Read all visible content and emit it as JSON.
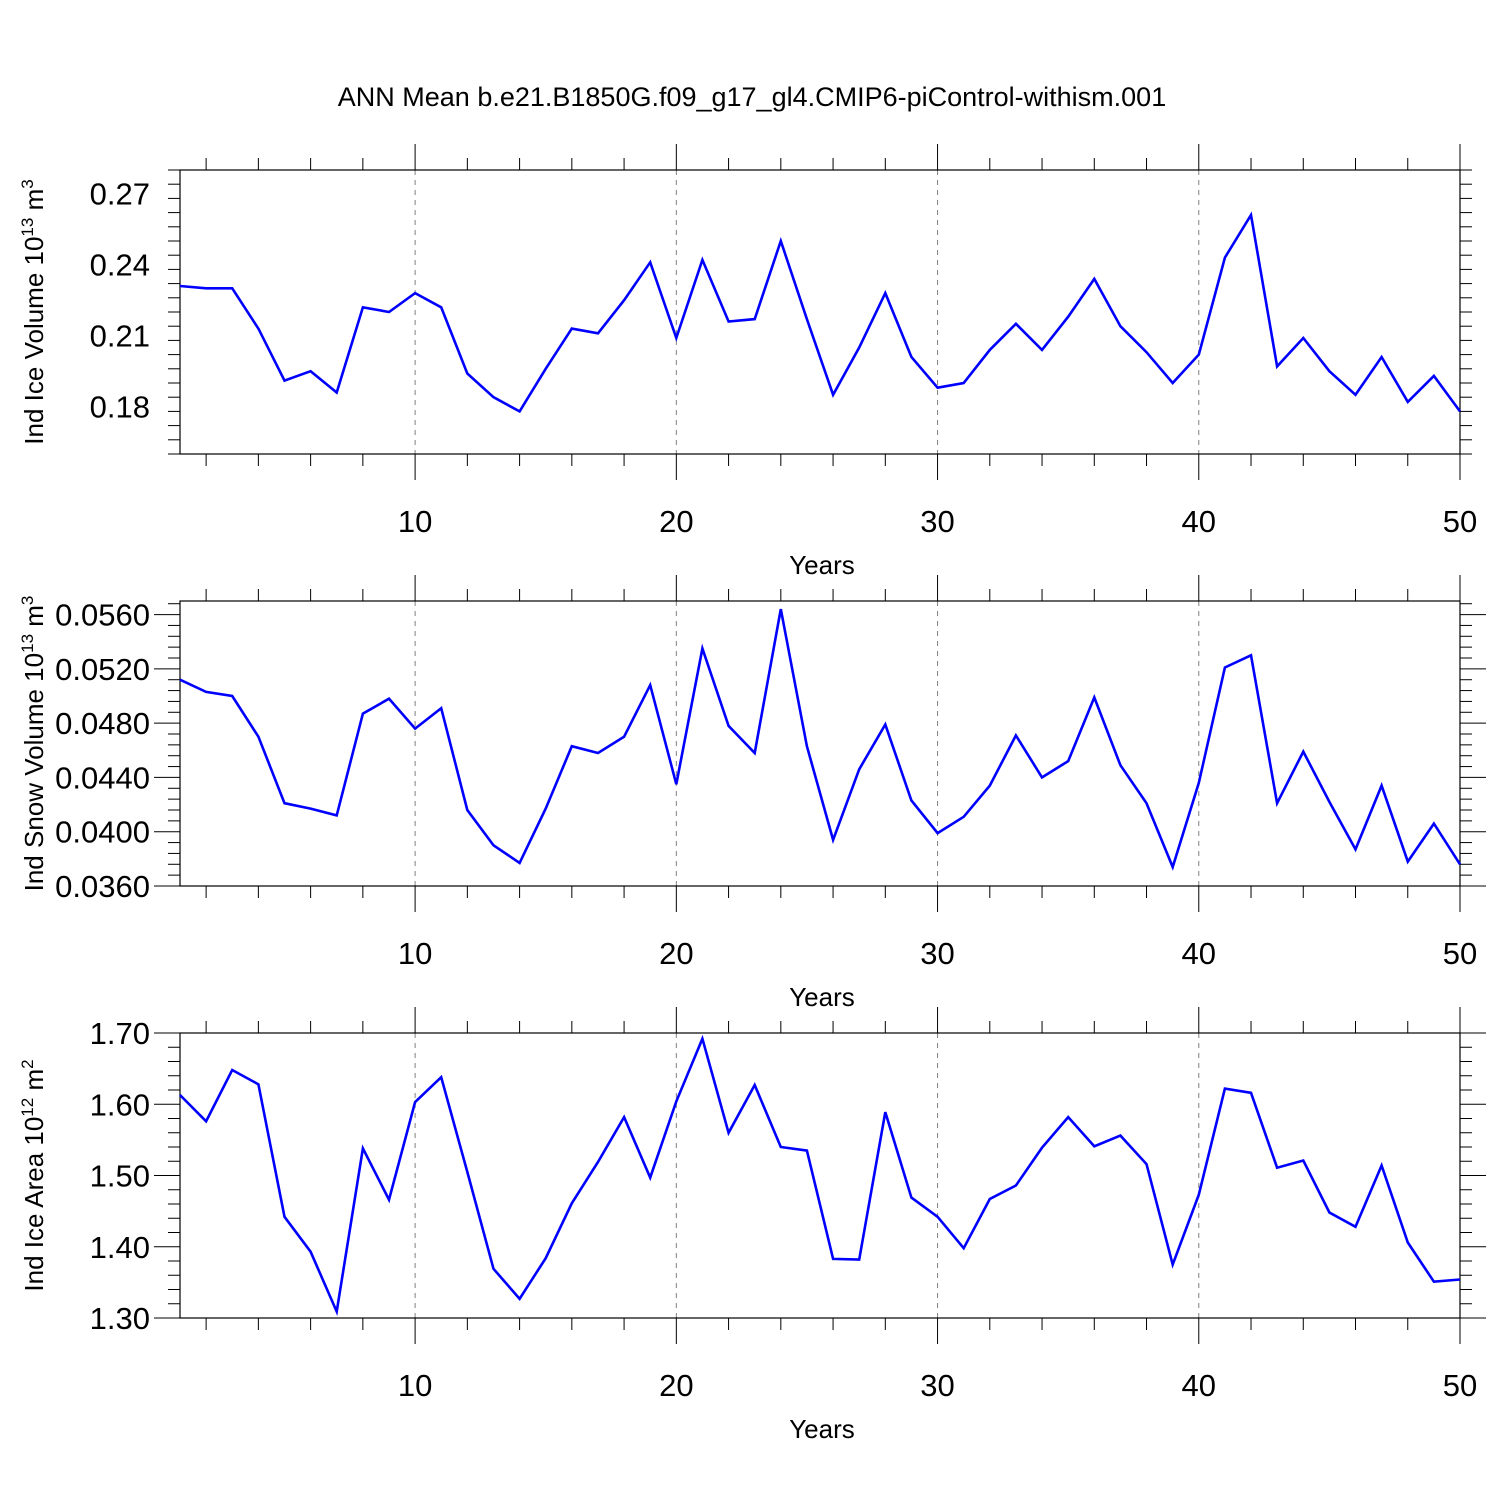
{
  "title": "ANN Mean b.e21.B1850G.f09_g17_gl4.CMIP6-piControl-withism.001",
  "colors": {
    "line": "#0000ff",
    "axis": "#000000",
    "grid": "#808080"
  },
  "chart_data": [
    {
      "type": "line",
      "ylabel": "Ind Ice Volume 10",
      "ylabel_sup": "13",
      "ylabel_unit": " m",
      "ylabel_unit_sup": "3",
      "xlabel": "Years",
      "xlim": [
        1,
        50
      ],
      "ylim": [
        0.16,
        0.28
      ],
      "yticks": [
        0.18,
        0.21,
        0.24,
        0.27
      ],
      "ytick_labels": [
        "0.18",
        "0.21",
        "0.24",
        "0.27"
      ],
      "xticks": [
        10,
        20,
        30,
        40,
        50
      ],
      "xtick_labels": [
        "10",
        "20",
        "30",
        "40",
        "50"
      ],
      "grid": "vertical dashed at 10, 20, 30, 40",
      "x": [
        1,
        2,
        3,
        4,
        5,
        6,
        7,
        8,
        9,
        10,
        11,
        12,
        13,
        14,
        15,
        16,
        17,
        18,
        19,
        20,
        21,
        22,
        23,
        24,
        25,
        26,
        27,
        28,
        29,
        30,
        31,
        32,
        33,
        34,
        35,
        36,
        37,
        38,
        39,
        40,
        41,
        42,
        43,
        44,
        45,
        46,
        47,
        48,
        49,
        50
      ],
      "values": [
        0.231,
        0.23,
        0.23,
        0.213,
        0.191,
        0.195,
        0.186,
        0.222,
        0.22,
        0.228,
        0.222,
        0.194,
        0.184,
        0.178,
        0.196,
        0.213,
        0.211,
        0.225,
        0.241,
        0.209,
        0.242,
        0.216,
        0.217,
        0.25,
        0.217,
        0.185,
        0.205,
        0.228,
        0.201,
        0.188,
        0.19,
        0.204,
        0.215,
        0.204,
        0.218,
        0.234,
        0.214,
        0.203,
        0.19,
        0.202,
        0.243,
        0.261,
        0.197,
        0.209,
        0.195,
        0.185,
        0.201,
        0.182,
        0.193,
        0.178
      ]
    },
    {
      "type": "line",
      "ylabel": "Ind Snow Volume 10",
      "ylabel_sup": "13",
      "ylabel_unit": " m",
      "ylabel_unit_sup": "3",
      "xlabel": "Years",
      "xlim": [
        1,
        50
      ],
      "ylim": [
        0.036,
        0.057
      ],
      "yticks": [
        0.036,
        0.04,
        0.044,
        0.048,
        0.052,
        0.056
      ],
      "ytick_labels": [
        "0.0360",
        "0.0400",
        "0.0440",
        "0.0480",
        "0.0520",
        "0.0560"
      ],
      "xticks": [
        10,
        20,
        30,
        40,
        50
      ],
      "xtick_labels": [
        "10",
        "20",
        "30",
        "40",
        "50"
      ],
      "grid": "vertical dashed at 10, 20, 30, 40",
      "x": [
        1,
        2,
        3,
        4,
        5,
        6,
        7,
        8,
        9,
        10,
        11,
        12,
        13,
        14,
        15,
        16,
        17,
        18,
        19,
        20,
        21,
        22,
        23,
        24,
        25,
        26,
        27,
        28,
        29,
        30,
        31,
        32,
        33,
        34,
        35,
        36,
        37,
        38,
        39,
        40,
        41,
        42,
        43,
        44,
        45,
        46,
        47,
        48,
        49,
        50
      ],
      "values": [
        0.0512,
        0.0503,
        0.05,
        0.047,
        0.0421,
        0.0417,
        0.0412,
        0.0487,
        0.0498,
        0.0476,
        0.0491,
        0.0416,
        0.039,
        0.0377,
        0.0417,
        0.0463,
        0.0458,
        0.047,
        0.0508,
        0.0435,
        0.0535,
        0.0478,
        0.0458,
        0.0564,
        0.0463,
        0.0394,
        0.0446,
        0.0479,
        0.0423,
        0.0399,
        0.0411,
        0.0434,
        0.0471,
        0.044,
        0.0452,
        0.0499,
        0.0449,
        0.0421,
        0.0374,
        0.0436,
        0.0521,
        0.053,
        0.0421,
        0.0459,
        0.0422,
        0.0387,
        0.0434,
        0.0378,
        0.0406,
        0.0376
      ]
    },
    {
      "type": "line",
      "ylabel": "Ind Ice Area 10",
      "ylabel_sup": "12",
      "ylabel_unit": " m",
      "ylabel_unit_sup": "2",
      "xlabel": "Years",
      "xlim": [
        1,
        50
      ],
      "ylim": [
        1.3,
        1.7
      ],
      "yticks": [
        1.3,
        1.4,
        1.5,
        1.6,
        1.7
      ],
      "ytick_labels": [
        "1.30",
        "1.40",
        "1.50",
        "1.60",
        "1.70"
      ],
      "xticks": [
        10,
        20,
        30,
        40,
        50
      ],
      "xtick_labels": [
        "10",
        "20",
        "30",
        "40",
        "50"
      ],
      "grid": "vertical dashed at 10, 20, 30, 40",
      "x": [
        1,
        2,
        3,
        4,
        5,
        6,
        7,
        8,
        9,
        10,
        11,
        12,
        13,
        14,
        15,
        16,
        17,
        18,
        19,
        20,
        21,
        22,
        23,
        24,
        25,
        26,
        27,
        28,
        29,
        30,
        31,
        32,
        33,
        34,
        35,
        36,
        37,
        38,
        39,
        40,
        41,
        42,
        43,
        44,
        45,
        46,
        47,
        48,
        49,
        50
      ],
      "values": [
        1.613,
        1.576,
        1.648,
        1.628,
        1.442,
        1.393,
        1.309,
        1.538,
        1.466,
        1.603,
        1.638,
        1.505,
        1.369,
        1.327,
        1.384,
        1.461,
        1.519,
        1.582,
        1.497,
        1.604,
        1.692,
        1.56,
        1.627,
        1.54,
        1.535,
        1.383,
        1.382,
        1.589,
        1.469,
        1.442,
        1.398,
        1.467,
        1.486,
        1.539,
        1.582,
        1.541,
        1.556,
        1.516,
        1.375,
        1.473,
        1.622,
        1.616,
        1.511,
        1.521,
        1.448,
        1.428,
        1.514,
        1.406,
        1.351,
        1.354
      ]
    }
  ]
}
